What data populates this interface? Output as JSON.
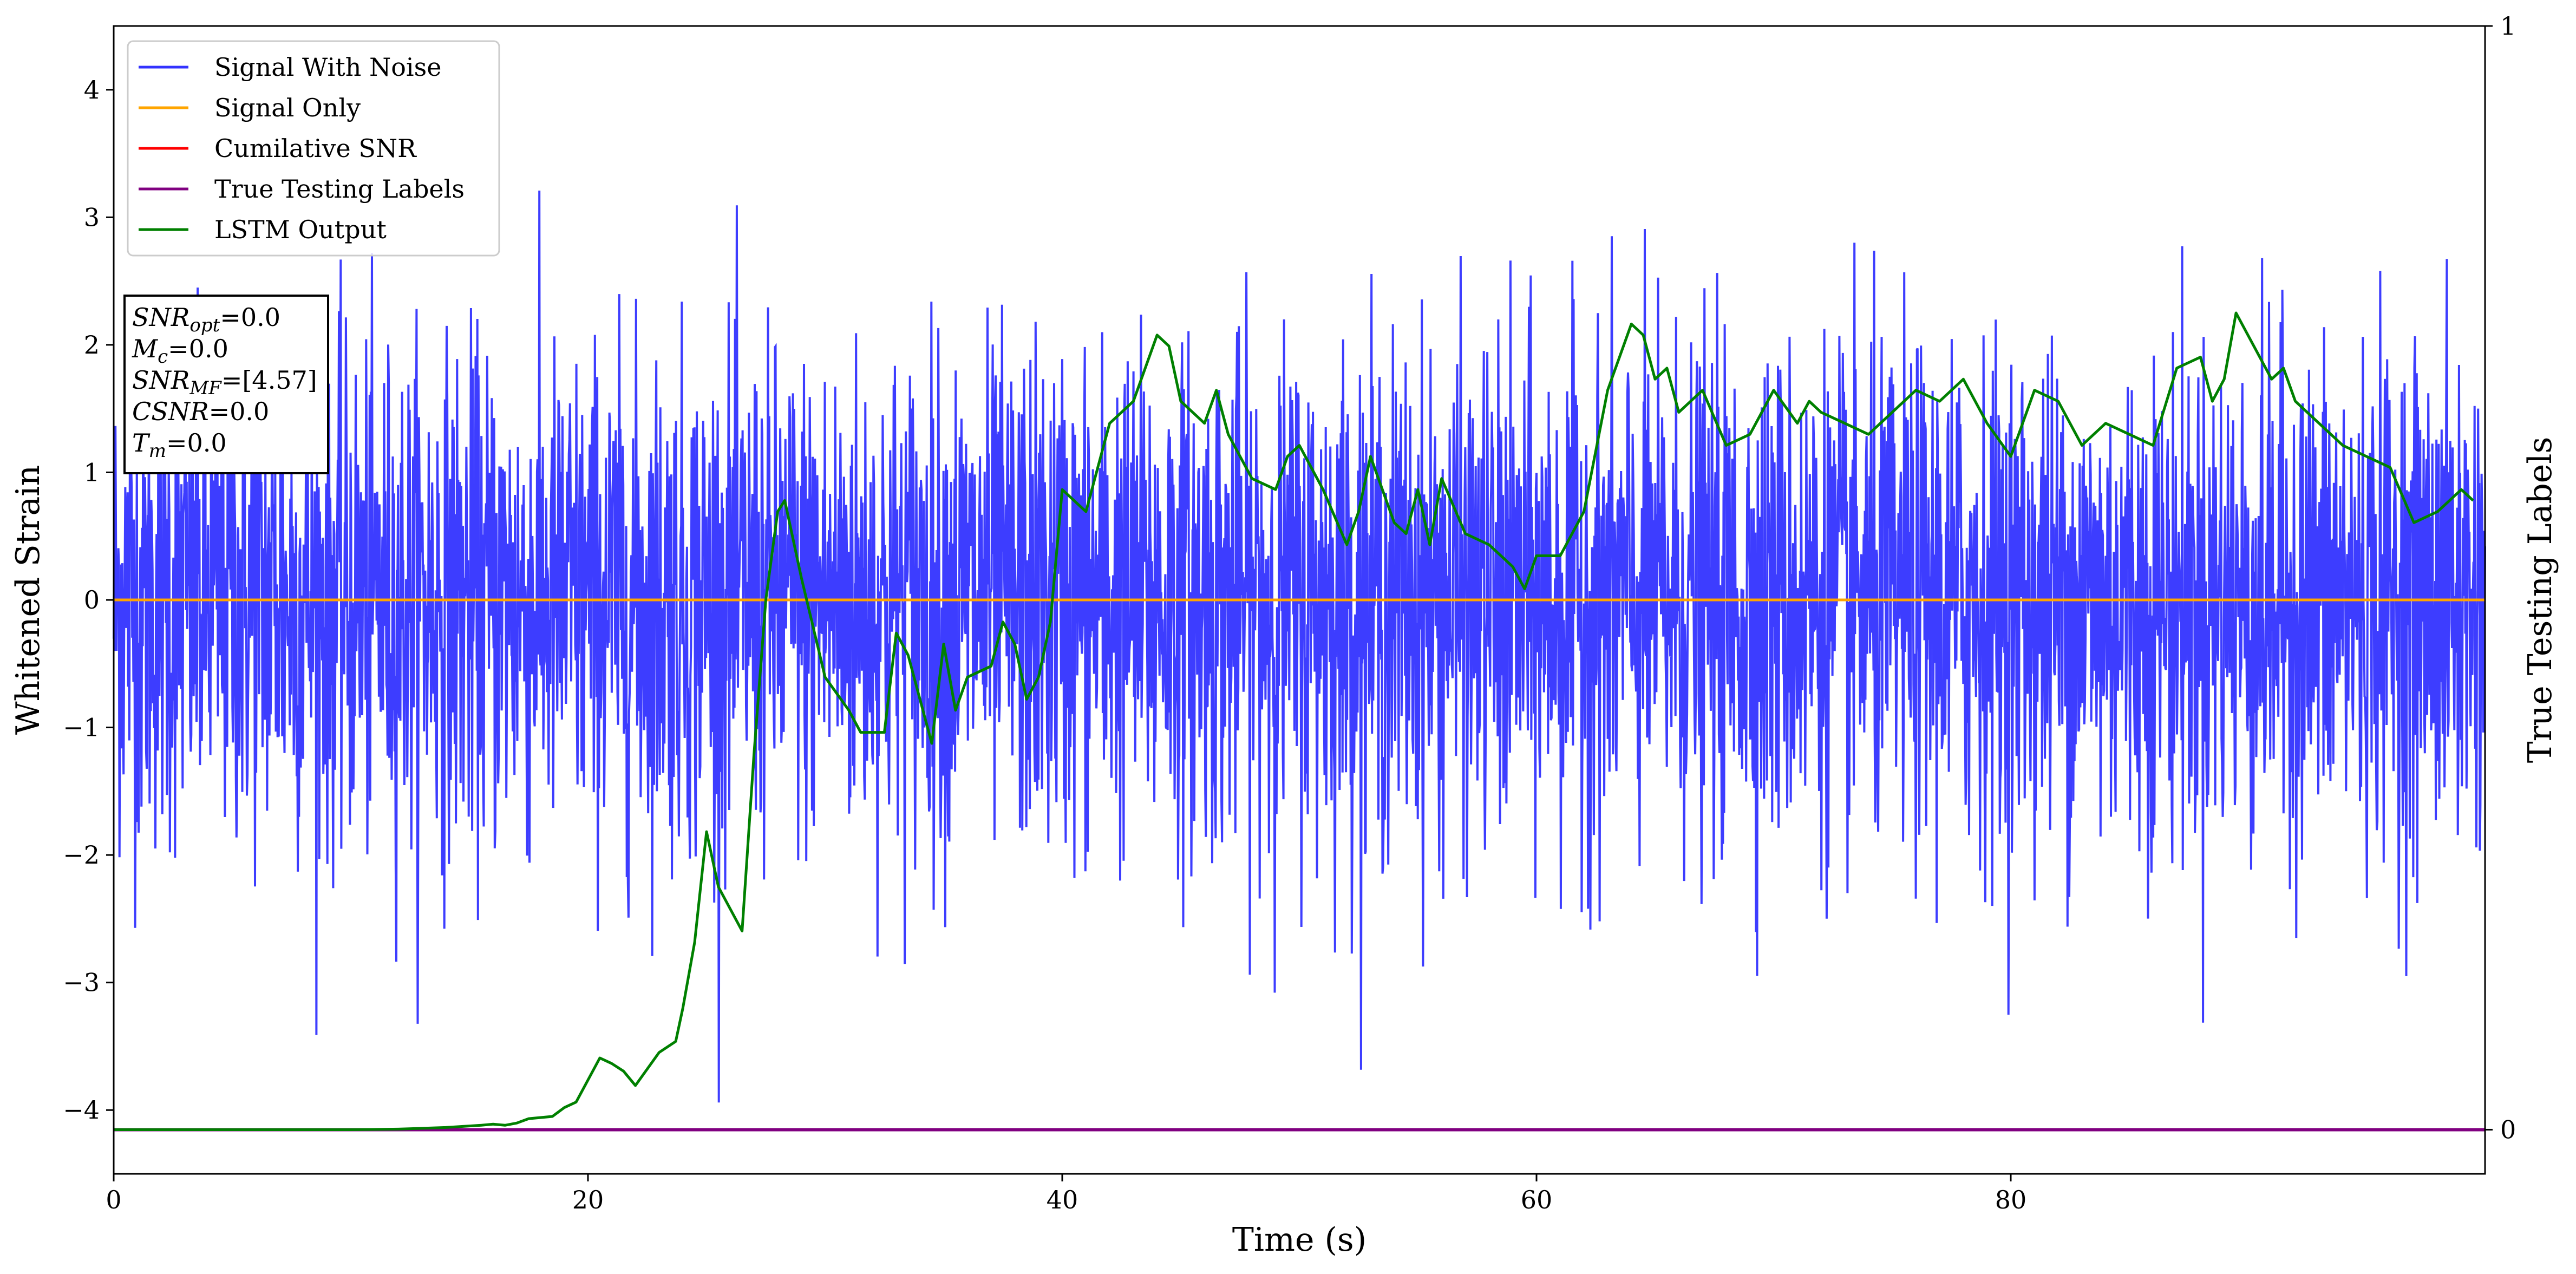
{
  "chart_data": {
    "type": "line",
    "xlabel": "Time (s)",
    "ylabel": "Whitened Strain",
    "y2label": "True Testing Labels",
    "xlim": [
      0,
      100
    ],
    "ylim": [
      -4.5,
      4.5
    ],
    "y2lim": [
      -0.04,
      1
    ],
    "x_ticks": [
      0,
      20,
      40,
      60,
      80
    ],
    "x_tick_labels": [
      "0",
      "20",
      "40",
      "60",
      "80"
    ],
    "y_ticks": [
      -4,
      -3,
      -2,
      -1,
      0,
      1,
      2,
      3,
      4
    ],
    "y_tick_labels": [
      "−4",
      "−3",
      "−2",
      "−1",
      "0",
      "1",
      "2",
      "3",
      "4"
    ],
    "y2_ticks": [
      0,
      1
    ],
    "y2_tick_labels": [
      "0",
      "1"
    ],
    "grid": false,
    "legend": {
      "placement": "top-left",
      "entries": [
        {
          "label": "Signal With Noise",
          "color": "#3333ff"
        },
        {
          "label": "Signal Only",
          "color": "#ffa500"
        },
        {
          "label": "Cumilative SNR",
          "color": "#ff0000"
        },
        {
          "label": "True Testing Labels",
          "color": "#800080"
        },
        {
          "label": "LSTM Output",
          "color": "#008000"
        }
      ]
    },
    "info_box": {
      "lines": [
        {
          "sym": "SNR",
          "sub": "opt",
          "val": "=0.0"
        },
        {
          "sym": "M",
          "sub": "c",
          "val": "=0.0"
        },
        {
          "sym": "SNR",
          "sub": "MF",
          "val": "=[4.57]"
        },
        {
          "sym": "CSNR",
          "sub": "",
          "val": "=0.0"
        },
        {
          "sym": "T",
          "sub": "m",
          "val": "=0.0"
        }
      ]
    },
    "series": [
      {
        "name": "Signal With Noise",
        "axis": "left",
        "color": "#3333ff",
        "x_range": [
          0,
          100
        ],
        "n_points": 4096,
        "std": 0.98,
        "y_range": [
          -4.1,
          4.05
        ]
      },
      {
        "name": "Signal Only",
        "axis": "left",
        "color": "#ffa500",
        "x": [
          0,
          100
        ],
        "y": [
          0,
          0
        ]
      },
      {
        "name": "True Testing Labels",
        "axis": "right",
        "color": "#800080",
        "x": [
          0,
          100
        ],
        "y": [
          0,
          0
        ]
      },
      {
        "name": "LSTM Output",
        "axis": "right",
        "color": "#008000",
        "x": [
          0,
          10,
          12,
          14,
          15.5,
          16,
          16.5,
          17,
          17.5,
          18.5,
          19,
          19.5,
          20.5,
          21,
          21.5,
          22,
          23,
          23.7,
          24,
          24.5,
          25,
          25.5,
          26.5,
          27,
          27.5,
          28,
          28.3,
          29,
          30,
          31,
          31.5,
          32.5,
          33,
          33.5,
          34,
          34.5,
          35,
          35.5,
          36,
          37,
          37.5,
          38,
          38.5,
          39,
          39.5,
          40,
          41,
          42,
          42.5,
          43,
          44,
          44.5,
          45,
          46,
          46.5,
          47,
          48,
          49,
          49.5,
          50,
          51,
          52,
          52.5,
          53,
          54,
          54.5,
          55,
          55.5,
          56,
          57,
          58,
          59,
          59.5,
          60,
          61,
          62,
          63,
          64,
          64.5,
          65,
          65.5,
          66,
          66.5,
          67,
          68,
          69,
          70,
          71,
          71.5,
          72,
          73,
          74,
          75,
          76,
          77,
          78,
          79,
          80,
          81,
          82,
          83,
          84,
          85,
          86,
          87,
          88,
          88.5,
          89,
          89.5,
          90,
          91,
          91.5,
          92,
          93,
          94,
          95,
          96,
          97,
          98,
          99,
          99.5
        ],
        "y": [
          0,
          0,
          0.0005,
          0.002,
          0.004,
          0.005,
          0.004,
          0.006,
          0.01,
          0.012,
          0.02,
          0.025,
          0.065,
          0.06,
          0.053,
          0.04,
          0.07,
          0.08,
          0.11,
          0.17,
          0.27,
          0.22,
          0.18,
          0.34,
          0.48,
          0.56,
          0.57,
          0.5,
          0.41,
          0.38,
          0.36,
          0.36,
          0.45,
          0.43,
          0.39,
          0.35,
          0.44,
          0.38,
          0.41,
          0.42,
          0.46,
          0.44,
          0.39,
          0.41,
          0.46,
          0.58,
          0.56,
          0.64,
          0.65,
          0.66,
          0.72,
          0.71,
          0.66,
          0.64,
          0.67,
          0.63,
          0.59,
          0.58,
          0.61,
          0.62,
          0.58,
          0.53,
          0.56,
          0.61,
          0.55,
          0.54,
          0.58,
          0.53,
          0.59,
          0.54,
          0.53,
          0.51,
          0.49,
          0.52,
          0.52,
          0.56,
          0.67,
          0.73,
          0.72,
          0.68,
          0.69,
          0.65,
          0.66,
          0.67,
          0.62,
          0.63,
          0.67,
          0.64,
          0.66,
          0.65,
          0.64,
          0.63,
          0.65,
          0.67,
          0.66,
          0.68,
          0.64,
          0.61,
          0.67,
          0.66,
          0.62,
          0.64,
          0.63,
          0.62,
          0.69,
          0.7,
          0.66,
          0.68,
          0.74,
          0.72,
          0.68,
          0.69,
          0.66,
          0.64,
          0.62,
          0.61,
          0.6,
          0.55,
          0.56,
          0.58,
          0.57
        ]
      }
    ]
  }
}
